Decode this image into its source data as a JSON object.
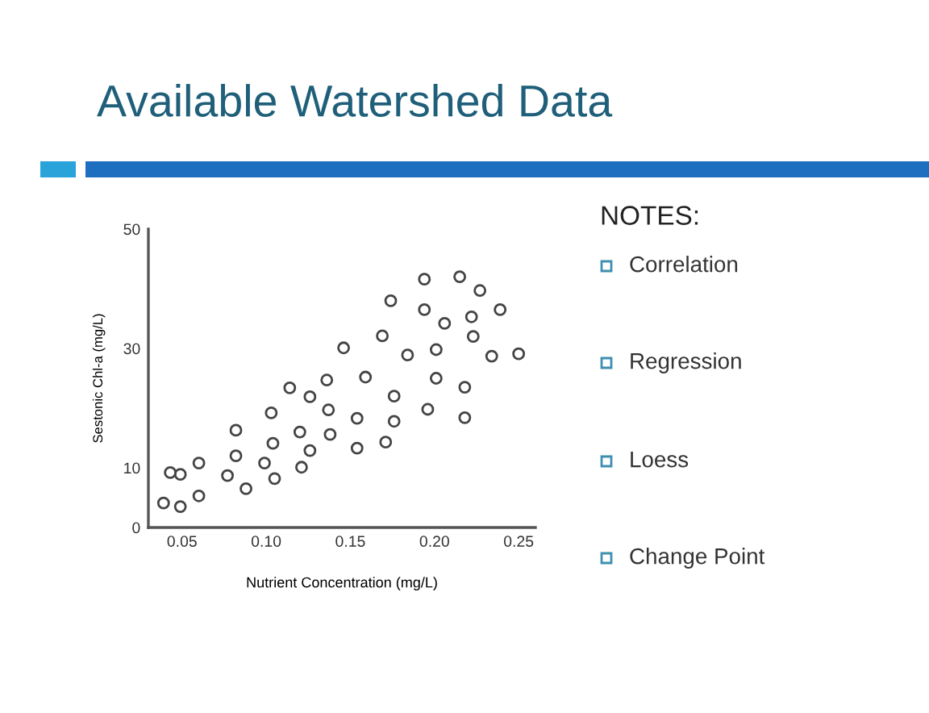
{
  "chart_data": {
    "type": "scatter",
    "title": "Available Watershed Data",
    "xlabel": "Nutrient Concentration (mg/L)",
    "ylabel": "Sestonic Chl-a (mg/L)",
    "annotations": [
      "NOTES:",
      "Correlation",
      "Regression",
      "Loess",
      "Change Point"
    ],
    "marker": "circle",
    "grid": false,
    "legend": false,
    "xlim": [
      0.03,
      0.26
    ],
    "xticks": [
      0.05,
      {
        "value": 0.1,
        "label": "0.10"
      },
      0.15,
      {
        "value": 0.2,
        "label": "0.20"
      },
      0.25
    ],
    "ylim": [
      0,
      50
    ],
    "yticks": [
      0,
      10,
      30,
      50
    ],
    "series": [
      {
        "color": "#444444",
        "x": [
          0.039,
          0.043,
          0.049,
          0.049,
          0.06,
          0.06,
          0.077,
          0.082,
          0.082,
          0.088,
          0.099,
          0.103,
          0.104,
          0.105,
          0.114,
          0.12,
          0.121,
          0.126,
          0.126,
          0.136,
          0.137,
          0.138,
          0.146,
          0.154,
          0.154,
          0.159,
          0.169,
          0.171,
          0.174,
          0.176,
          0.176,
          0.184,
          0.194,
          0.194,
          0.196,
          0.201,
          0.201,
          0.206,
          0.215,
          0.218,
          0.218,
          0.222,
          0.223,
          0.227,
          0.234,
          0.239,
          0.25
        ],
        "values": [
          4.1,
          9.2,
          8.9,
          3.5,
          10.8,
          5.3,
          8.7,
          12.0,
          16.3,
          6.5,
          10.8,
          19.2,
          14.1,
          8.2,
          23.4,
          16.0,
          10.1,
          21.9,
          12.9,
          24.7,
          19.7,
          15.6,
          30.1,
          18.3,
          13.3,
          25.2,
          32.1,
          14.3,
          38.0,
          22.0,
          17.8,
          28.9,
          36.5,
          41.6,
          19.8,
          25.0,
          29.8,
          34.2,
          42.0,
          23.5,
          18.4,
          35.3,
          32.0,
          39.7,
          28.7,
          36.5,
          29.1
        ]
      }
    ]
  }
}
